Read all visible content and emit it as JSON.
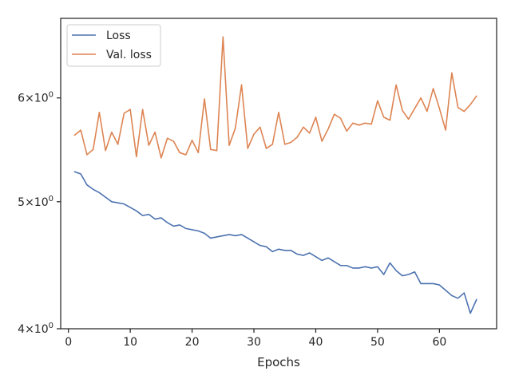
{
  "chart_data": {
    "type": "line",
    "title": "",
    "xlabel": "Epochs",
    "ylabel": "",
    "yscale": "log",
    "xlim": [
      -1.25,
      69.25
    ],
    "ylim": [
      4.0,
      6.9
    ],
    "xticks": [
      0,
      10,
      20,
      30,
      40,
      50,
      60
    ],
    "xtick_labels": [
      "0",
      "10",
      "20",
      "30",
      "40",
      "50",
      "60"
    ],
    "yticks": [
      4,
      5,
      6
    ],
    "ytick_labels": [
      {
        "base": "4",
        "exp": "0"
      },
      {
        "base": "5",
        "exp": "0"
      },
      {
        "base": "6",
        "exp": "0"
      }
    ],
    "grid": false,
    "legend_position": "upper-left",
    "series": [
      {
        "name": "Loss",
        "color": "#4c72b0",
        "x": [
          1,
          2,
          3,
          4,
          5,
          6,
          7,
          8,
          9,
          10,
          11,
          12,
          13,
          14,
          15,
          16,
          17,
          18,
          19,
          20,
          21,
          22,
          23,
          24,
          25,
          26,
          27,
          28,
          29,
          30,
          31,
          32,
          33,
          34,
          35,
          36,
          37,
          38,
          39,
          40,
          41,
          42,
          43,
          44,
          45,
          46,
          47,
          48,
          49,
          50,
          51,
          52,
          53,
          54,
          55,
          56,
          57,
          58,
          59,
          60,
          61,
          62,
          63,
          64,
          65,
          66
        ],
        "values": [
          5.27,
          5.25,
          5.15,
          5.11,
          5.08,
          5.04,
          5.0,
          4.99,
          4.98,
          4.95,
          4.92,
          4.88,
          4.89,
          4.85,
          4.86,
          4.82,
          4.79,
          4.8,
          4.77,
          4.76,
          4.75,
          4.73,
          4.69,
          4.7,
          4.71,
          4.72,
          4.71,
          4.72,
          4.69,
          4.66,
          4.63,
          4.62,
          4.58,
          4.6,
          4.59,
          4.59,
          4.56,
          4.55,
          4.57,
          4.54,
          4.51,
          4.53,
          4.5,
          4.47,
          4.47,
          4.45,
          4.45,
          4.46,
          4.45,
          4.46,
          4.4,
          4.49,
          4.43,
          4.39,
          4.4,
          4.42,
          4.33,
          4.33,
          4.33,
          4.32,
          4.28,
          4.24,
          4.22,
          4.26,
          4.11,
          4.21
        ]
      },
      {
        "name": "Val. loss",
        "color": "#dd8452",
        "x": [
          1,
          2,
          3,
          4,
          5,
          6,
          7,
          8,
          9,
          10,
          11,
          12,
          13,
          14,
          15,
          16,
          17,
          18,
          19,
          20,
          21,
          22,
          23,
          24,
          25,
          26,
          27,
          28,
          29,
          30,
          31,
          32,
          33,
          34,
          35,
          36,
          37,
          38,
          39,
          40,
          41,
          42,
          43,
          44,
          45,
          46,
          47,
          48,
          49,
          50,
          51,
          52,
          53,
          54,
          55,
          56,
          57,
          58,
          59,
          60,
          61,
          62,
          63,
          64,
          65,
          66
        ],
        "values": [
          5.62,
          5.67,
          5.43,
          5.48,
          5.85,
          5.47,
          5.65,
          5.53,
          5.84,
          5.88,
          5.41,
          5.88,
          5.52,
          5.65,
          5.4,
          5.59,
          5.56,
          5.45,
          5.43,
          5.57,
          5.45,
          5.99,
          5.48,
          5.47,
          6.68,
          5.52,
          5.69,
          6.14,
          5.49,
          5.63,
          5.7,
          5.49,
          5.53,
          5.85,
          5.53,
          5.55,
          5.6,
          5.7,
          5.64,
          5.8,
          5.56,
          5.68,
          5.83,
          5.79,
          5.66,
          5.74,
          5.72,
          5.74,
          5.73,
          5.97,
          5.8,
          5.77,
          6.14,
          5.87,
          5.78,
          5.89,
          6.0,
          5.86,
          6.1,
          5.89,
          5.67,
          6.27,
          5.9,
          5.86,
          5.93,
          6.02
        ]
      }
    ]
  }
}
